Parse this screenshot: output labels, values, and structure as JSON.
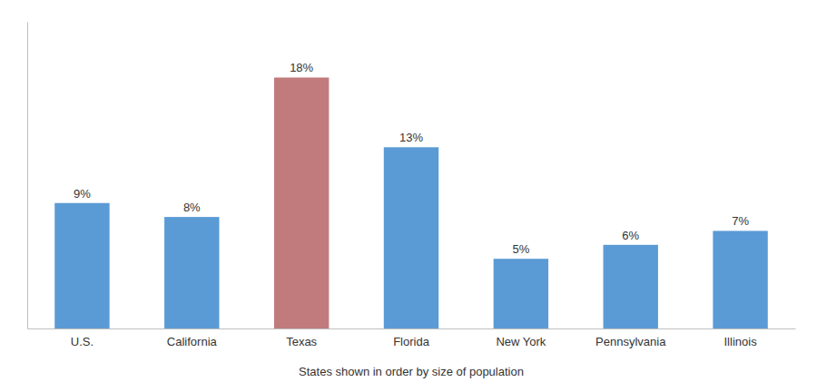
{
  "chart_data": {
    "type": "bar",
    "categories": [
      "U.S.",
      "California",
      "Texas",
      "Florida",
      "New York",
      "Pennsylvania",
      "Illinois"
    ],
    "values": [
      9,
      8,
      18,
      13,
      5,
      6,
      7
    ],
    "value_labels": [
      "9%",
      "8%",
      "18%",
      "13%",
      "5%",
      "6%",
      "7%"
    ],
    "colors": [
      "#5b9bd5",
      "#5b9bd5",
      "#c17b7d",
      "#5b9bd5",
      "#5b9bd5",
      "#5b9bd5",
      "#5b9bd5"
    ],
    "xlabel": "States shown in order by size of population",
    "ylim": [
      0,
      22
    ],
    "data_labels": true,
    "tick_labels": "x",
    "grid": false
  }
}
